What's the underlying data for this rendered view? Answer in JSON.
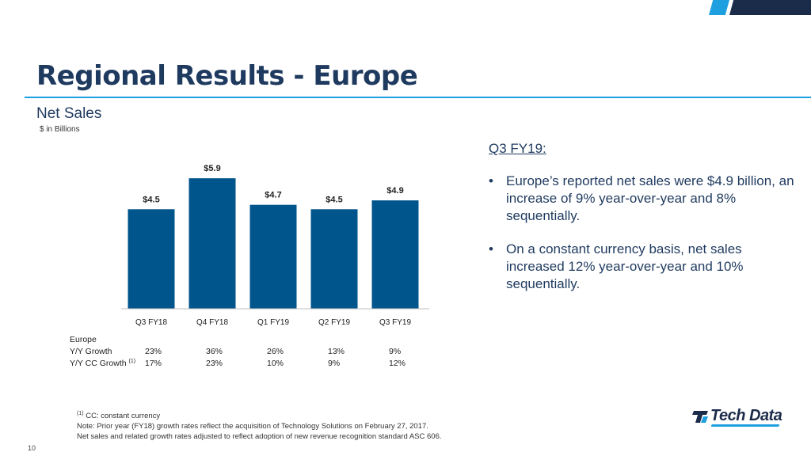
{
  "slide": {
    "title": "Regional Results - Europe",
    "subtitle": "Net Sales",
    "unit_note": "$ in Billions",
    "page_number": "10",
    "colors": {
      "title": "#1f3a5f",
      "accent": "#1ea0e0",
      "navy": "#1b2b4a"
    }
  },
  "chart_data": {
    "type": "bar",
    "categories": [
      "Q3 FY18",
      "Q4 FY18",
      "Q1 FY19",
      "Q2 FY19",
      "Q3 FY19"
    ],
    "values": [
      4.5,
      5.9,
      4.7,
      4.5,
      4.9
    ],
    "data_labels": [
      "$4.5",
      "$5.9",
      "$4.7",
      "$4.5",
      "$4.9"
    ],
    "title": "",
    "xlabel": "",
    "ylabel": "",
    "ylim": [
      0,
      6.3
    ],
    "grid": false,
    "bar_color": "#00558c"
  },
  "growth_table": {
    "section_label": "Europe",
    "rows": [
      {
        "label": "Y/Y Growth",
        "footnote_ref": "",
        "values": [
          "23%",
          "36%",
          "26%",
          "13%",
          "9%"
        ]
      },
      {
        "label": "Y/Y CC Growth",
        "footnote_ref": "(1)",
        "values": [
          "17%",
          "23%",
          "10%",
          "9%",
          "12%"
        ]
      }
    ]
  },
  "commentary": {
    "heading": "Q3 FY19:",
    "bullet_symbol": "•",
    "bullets": [
      "Europe’s reported net sales were $4.9 billion, an increase of 9% year-over-year and 8% sequentially.",
      "On a constant currency basis, net sales increased 12% year-over-year and 10% sequentially."
    ]
  },
  "footnotes": {
    "marker": "(1)",
    "cc_note": "CC: constant currency",
    "prior_year_note": "Note: Prior year (FY18)  growth rates reflect the acquisition of Technology Solutions on February 27, 2017.",
    "adoption_note": "Net sales and related growth rates adjusted to reflect adoption of new revenue recognition standard ASC 606."
  },
  "logo": {
    "text": "Tech Data",
    "icon": "tech-data-logo-icon"
  }
}
